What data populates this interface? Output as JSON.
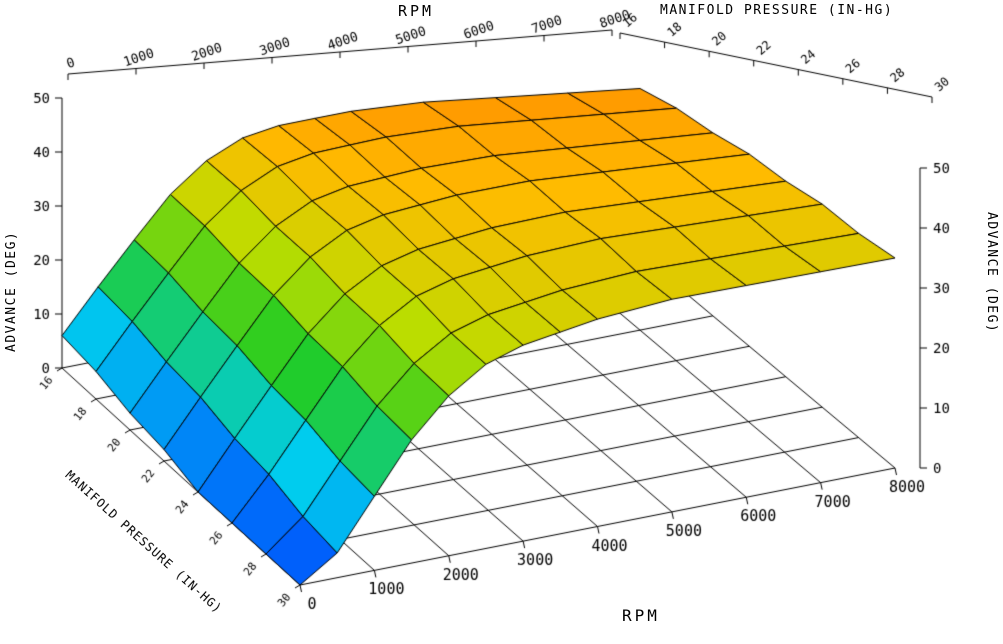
{
  "titles": {
    "top_rpm": "RPM",
    "top_map": "MANIFOLD PRESSURE (IN-HG)",
    "left_z": "ADVANCE (DEG)",
    "right_z": "ADVANCE (DEG)",
    "bottom_rpm": "RPM",
    "bottom_map": "MANIFOLD PRESSURE (IN-HG)"
  },
  "chart_data": {
    "type": "surface",
    "xlabel": "RPM",
    "ylabel": "MANIFOLD PRESSURE (IN-HG)",
    "zlabel": "ADVANCE (DEG)",
    "x": [
      0,
      500,
      1000,
      1500,
      2000,
      2500,
      3000,
      3500,
      4000,
      5000,
      6000,
      7000,
      8000
    ],
    "y": [
      16,
      18,
      20,
      22,
      24,
      26,
      28,
      30
    ],
    "z_values": [
      [
        6,
        14,
        22,
        30,
        36,
        40,
        42,
        43,
        44,
        45,
        45,
        45,
        45
      ],
      [
        5,
        13,
        21,
        29,
        35,
        39,
        41,
        42,
        43,
        44,
        44,
        44,
        44
      ],
      [
        3,
        11,
        19,
        27,
        33,
        37,
        39,
        40,
        41,
        42,
        42,
        42,
        42
      ],
      [
        2,
        10,
        18,
        26,
        32,
        36,
        38,
        39,
        40,
        41,
        41,
        41,
        41
      ],
      [
        0,
        8,
        16,
        24,
        30,
        34,
        36,
        37,
        38,
        39,
        39,
        39,
        39
      ],
      [
        0,
        7,
        15,
        23,
        29,
        33,
        35,
        36,
        37,
        38,
        38,
        38,
        38
      ],
      [
        0,
        5,
        13,
        21,
        27,
        31,
        33,
        34,
        35,
        36,
        36,
        36,
        36
      ],
      [
        0,
        4,
        12,
        20,
        26,
        30,
        32,
        33,
        34,
        35,
        35,
        35,
        35
      ]
    ],
    "x_ticks": [
      0,
      1000,
      2000,
      3000,
      4000,
      5000,
      6000,
      7000,
      8000
    ],
    "y_ticks": [
      16,
      18,
      20,
      22,
      24,
      26,
      28,
      30
    ],
    "z_ticks": [
      0,
      10,
      20,
      30,
      40,
      50
    ],
    "x_range": [
      0,
      8000
    ],
    "y_range": [
      16,
      30
    ],
    "z_range": [
      0,
      50
    ],
    "grid": true,
    "legend": "none",
    "background": "#ffffff",
    "mesh_color": "#000000",
    "axis_color": "#000000",
    "colormap": [
      "#0040ff",
      "#00ccee",
      "#22cc22",
      "#bbdd00",
      "#ffbb00",
      "#ff7700"
    ]
  }
}
